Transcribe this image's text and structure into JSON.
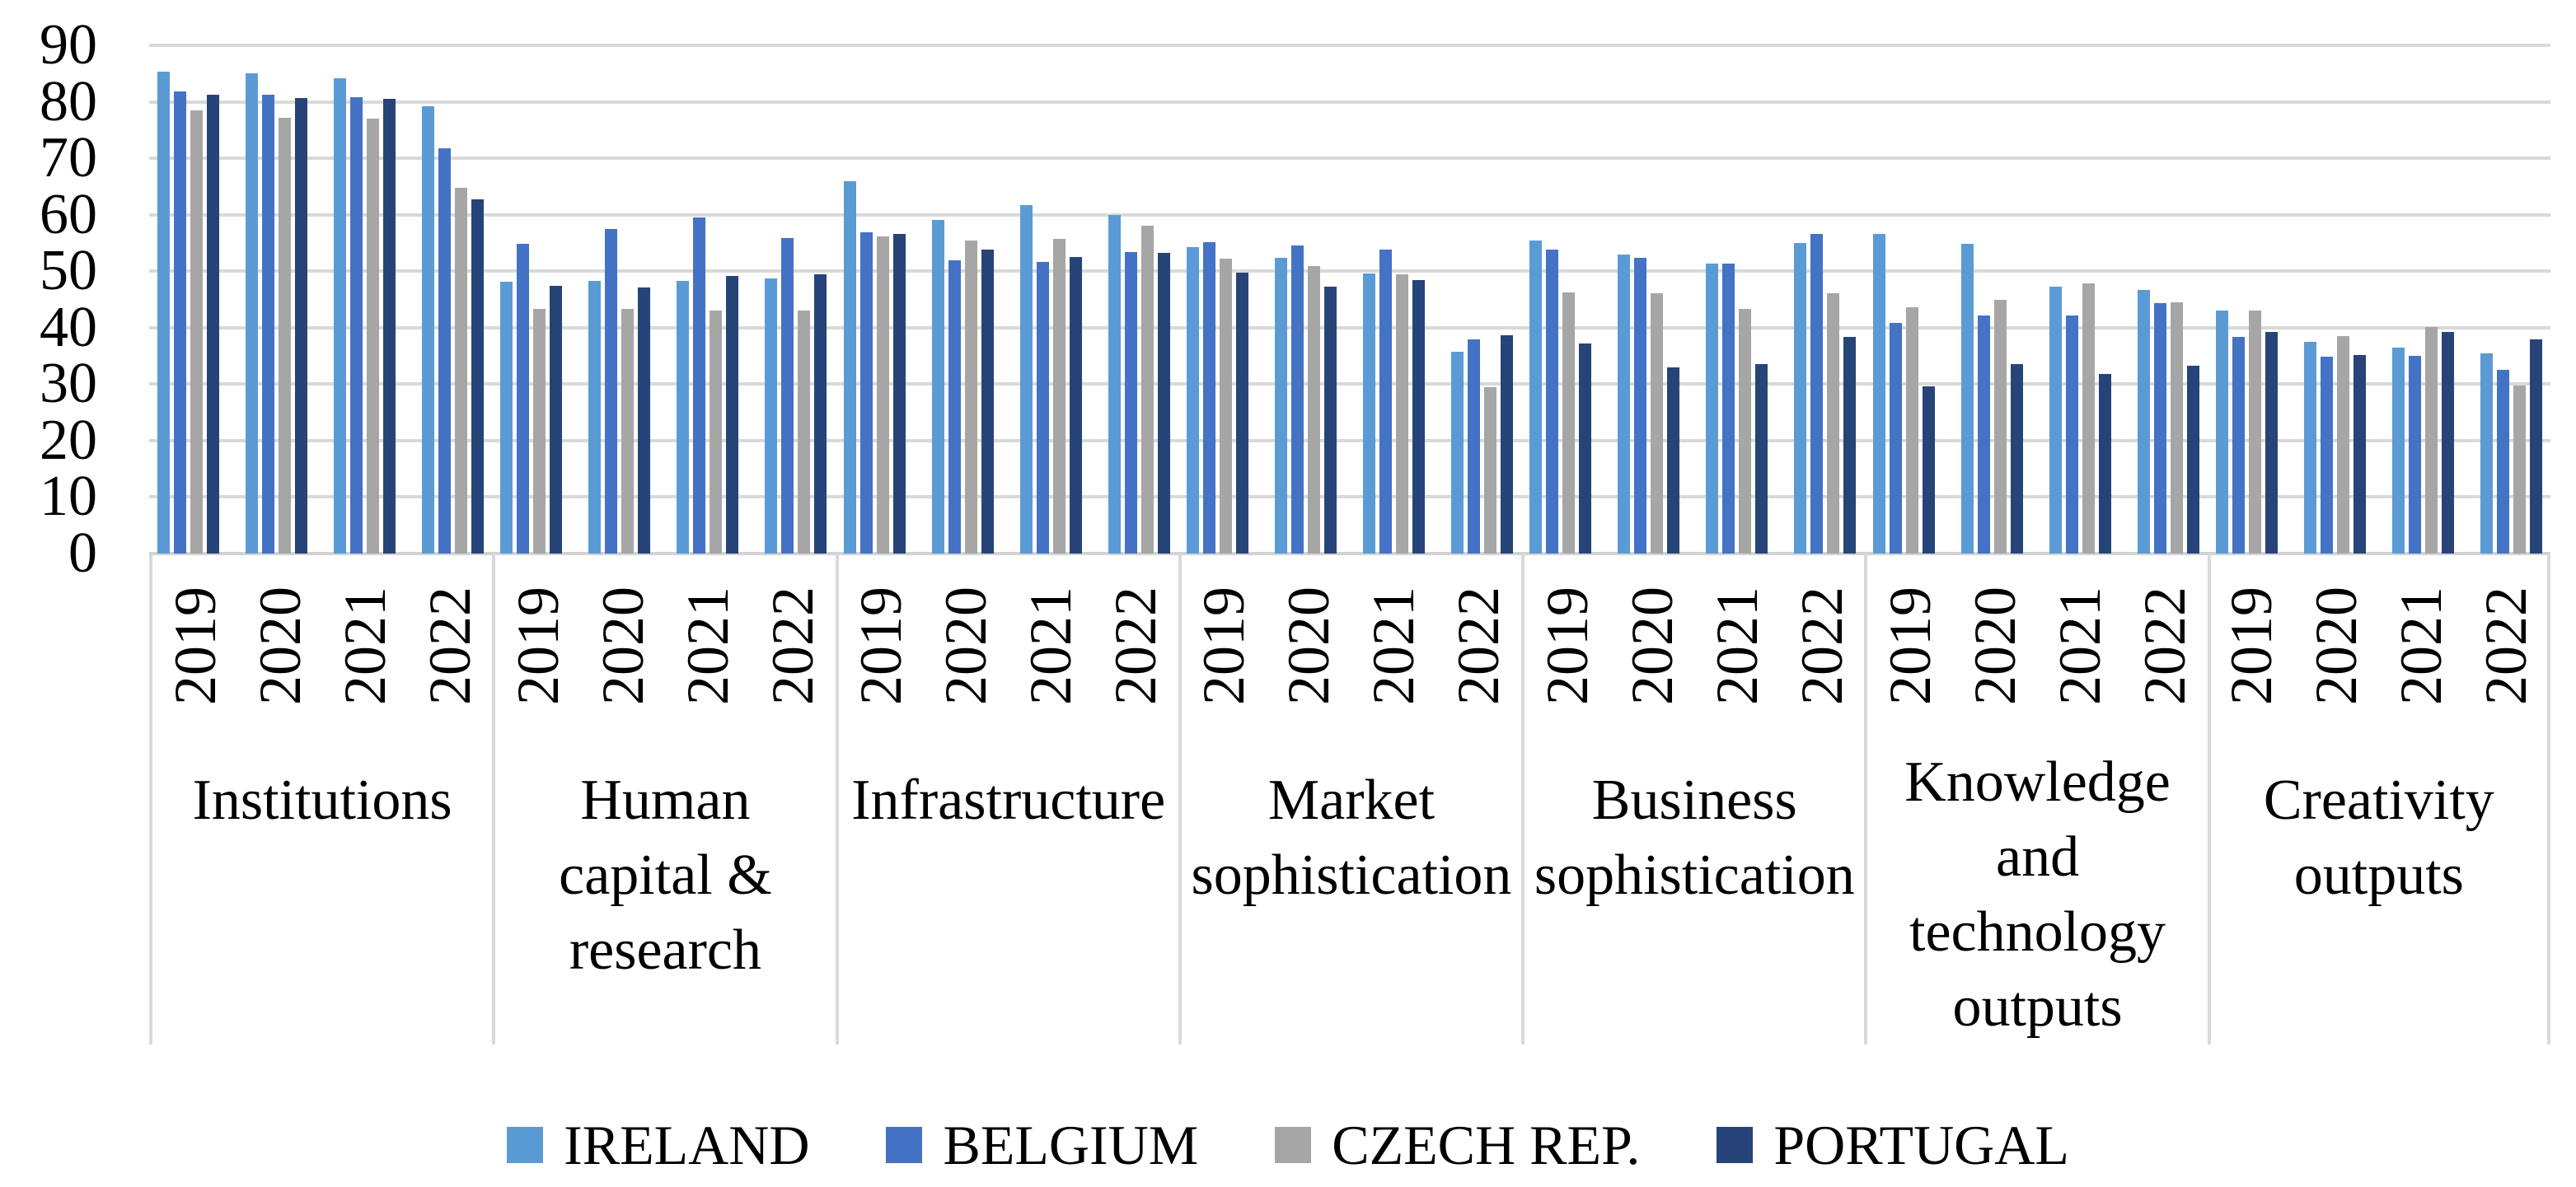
{
  "chart_data": {
    "type": "bar",
    "title": "",
    "xlabel": "",
    "ylabel": "",
    "ylim": [
      0,
      90
    ],
    "yticks": [
      "0",
      "10",
      "20",
      "30",
      "40",
      "50",
      "60",
      "70",
      "80",
      "90"
    ],
    "grid": true,
    "legend_position": "bottom",
    "group_labels": [
      "2019",
      "2020",
      "2021",
      "2022"
    ],
    "categories": [
      {
        "label": "Institutions",
        "lines": [
          "Institutions"
        ]
      },
      {
        "label": "Human capital & research",
        "lines": [
          "Human",
          "capital &",
          "research"
        ]
      },
      {
        "label": "Infrastructure",
        "lines": [
          "Infrastructure"
        ]
      },
      {
        "label": "Market sophistication",
        "lines": [
          "Market",
          "sophistication"
        ]
      },
      {
        "label": "Business sophistication",
        "lines": [
          "Business",
          "sophistication"
        ]
      },
      {
        "label": "Knowledge and technology outputs",
        "lines": [
          "Knowledge",
          "and",
          "technology",
          "outputs"
        ]
      },
      {
        "label": "Creativity outputs",
        "lines": [
          "Creativity",
          "outputs"
        ]
      }
    ],
    "series": [
      {
        "name": "IRELAND",
        "color": "#5B9BD5",
        "values": [
          [
            85.3,
            85.1,
            84.2,
            79.2
          ],
          [
            48.2,
            48.3,
            48.3,
            48.7
          ],
          [
            66.0,
            59.1,
            61.7,
            60.0
          ],
          [
            54.2,
            52.3,
            49.6,
            35.8
          ],
          [
            55.5,
            52.9,
            51.3,
            55.0
          ],
          [
            56.6,
            54.9,
            47.2,
            46.7
          ],
          [
            43.1,
            37.5,
            36.5,
            35.5
          ]
        ]
      },
      {
        "name": "BELGIUM",
        "color": "#4472C4",
        "values": [
          [
            81.8,
            81.2,
            80.8,
            71.7
          ],
          [
            54.8,
            57.5,
            59.5,
            55.9
          ],
          [
            56.9,
            52.0,
            51.7,
            53.4
          ],
          [
            55.1,
            54.5,
            53.9,
            38.0
          ],
          [
            53.9,
            52.3,
            51.4,
            56.6
          ],
          [
            40.8,
            42.1,
            42.1,
            44.3
          ],
          [
            38.3,
            34.8,
            35.0,
            32.5
          ]
        ]
      },
      {
        "name": "CZECH REP.",
        "color": "#A6A6A6",
        "values": [
          [
            78.5,
            77.2,
            77.0,
            64.7
          ],
          [
            43.3,
            43.3,
            43.0,
            43.1
          ],
          [
            56.2,
            55.4,
            55.7,
            58.0
          ],
          [
            52.2,
            50.9,
            49.4,
            29.4
          ],
          [
            46.2,
            46.1,
            43.3,
            46.1
          ],
          [
            43.6,
            45.0,
            47.9,
            44.5
          ],
          [
            43.0,
            38.5,
            40.1,
            29.8
          ]
        ]
      },
      {
        "name": "PORTUGAL",
        "color": "#264478",
        "values": [
          [
            81.3,
            80.7,
            80.5,
            62.7
          ],
          [
            47.4,
            47.1,
            49.1,
            49.4
          ],
          [
            56.6,
            53.9,
            52.5,
            53.3
          ],
          [
            49.7,
            47.2,
            48.5,
            38.7
          ],
          [
            37.2,
            33.0,
            33.6,
            38.4
          ],
          [
            29.6,
            33.5,
            31.8,
            33.2
          ],
          [
            39.3,
            35.2,
            39.3,
            37.9
          ]
        ]
      }
    ],
    "colors": {
      "gridline": "#D9D9D9",
      "axis_line": "#D3D3D3",
      "separator": "#D9D9D9",
      "text": "#000000",
      "background": "#FFFFFF"
    }
  }
}
